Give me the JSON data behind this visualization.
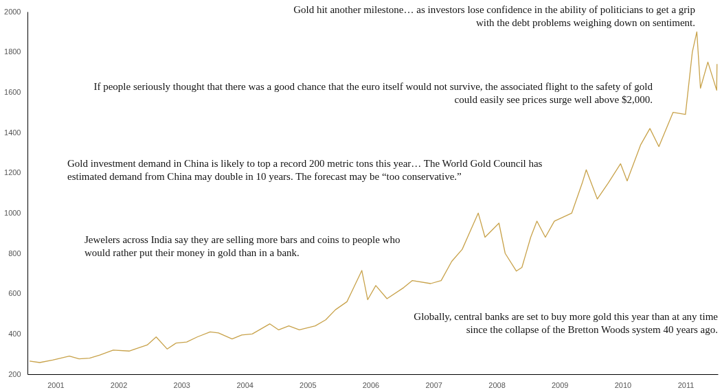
{
  "chart_data": {
    "type": "line",
    "x": [
      "2001-02-01",
      "2001-04-01",
      "2001-06-15",
      "2001-09-20",
      "2001-11-15",
      "2002-01-15",
      "2002-03-15",
      "2002-06-01",
      "2002-09-01",
      "2002-12-15",
      "2003-02-05",
      "2003-04-10",
      "2003-06-01",
      "2003-08-01",
      "2003-10-01",
      "2003-12-15",
      "2004-02-01",
      "2004-04-20",
      "2004-06-15",
      "2004-08-15",
      "2004-11-25",
      "2005-01-15",
      "2005-03-15",
      "2005-05-15",
      "2005-08-15",
      "2005-10-15",
      "2005-12-10",
      "2006-02-15",
      "2006-05-12",
      "2006-06-15",
      "2006-08-01",
      "2006-10-05",
      "2007-01-10",
      "2007-03-01",
      "2007-06-15",
      "2007-08-15",
      "2007-10-15",
      "2007-12-15",
      "2008-01-25",
      "2008-03-17",
      "2008-04-25",
      "2008-07-15",
      "2008-08-20",
      "2008-10-24",
      "2008-11-25",
      "2009-01-15",
      "2009-02-20",
      "2009-04-10",
      "2009-06-01",
      "2009-09-10",
      "2009-11-10",
      "2009-12-03",
      "2010-02-05",
      "2010-04-10",
      "2010-06-20",
      "2010-07-28",
      "2010-10-15",
      "2010-12-07",
      "2011-01-28",
      "2011-04-20",
      "2011-07-01",
      "2011-08-10",
      "2011-09-05",
      "2011-09-26",
      "2011-11-08",
      "2011-12-29",
      "2011-12-31"
    ],
    "values": [
      265,
      258,
      270,
      290,
      276,
      280,
      295,
      320,
      315,
      345,
      385,
      325,
      355,
      360,
      385,
      410,
      405,
      375,
      395,
      400,
      450,
      420,
      440,
      420,
      440,
      470,
      520,
      560,
      715,
      570,
      640,
      575,
      630,
      665,
      650,
      665,
      760,
      820,
      900,
      1000,
      880,
      950,
      800,
      712,
      730,
      880,
      960,
      880,
      960,
      1000,
      1150,
      1215,
      1070,
      1150,
      1245,
      1160,
      1340,
      1420,
      1330,
      1500,
      1490,
      1800,
      1900,
      1620,
      1750,
      1610,
      1740
    ],
    "color": "#c8a24a",
    "xlim": [
      "2001-01-20",
      "2012-01-05"
    ],
    "xticks": [
      {
        "value": "2001-07-02",
        "label": "2001"
      },
      {
        "value": "2002-07-02",
        "label": "2002"
      },
      {
        "value": "2003-07-02",
        "label": "2003"
      },
      {
        "value": "2004-07-02",
        "label": "2004"
      },
      {
        "value": "2005-07-02",
        "label": "2005"
      },
      {
        "value": "2006-07-02",
        "label": "2006"
      },
      {
        "value": "2007-07-02",
        "label": "2007"
      },
      {
        "value": "2008-07-02",
        "label": "2008"
      },
      {
        "value": "2009-07-02",
        "label": "2009"
      },
      {
        "value": "2010-07-02",
        "label": "2010"
      },
      {
        "value": "2011-07-02",
        "label": "2011"
      }
    ],
    "ylim": [
      200,
      2000
    ],
    "yticks": [
      200,
      400,
      600,
      800,
      1000,
      1200,
      1400,
      1600,
      1800,
      2000
    ],
    "grid": false,
    "annotations": [
      "Gold hit another milestone… as investors lose confidence in the ability of politicians to get a grip\nwith the debt problems weighing down on sentiment.",
      "If people seriously thought that there was a good chance that the euro itself would not survive, the associated flight to the safety of gold\ncould easily see prices surge well above $2,000.",
      "Gold investment demand in China is likely to top a record 200 metric tons this year… The World Gold Council has\nestimated demand from China may double in 10 years. The forecast may be “too conservative.”",
      "Jewelers across India say they are selling more bars and coins to people who\nwould rather put their money in gold than in a bank.",
      "Globally, central banks are set to buy more gold this year than at any time\nsince the collapse of the Bretton Woods system 40 years ago."
    ]
  }
}
